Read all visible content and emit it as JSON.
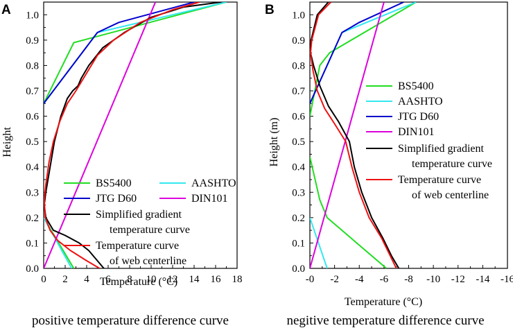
{
  "chart_data": [
    {
      "type": "line",
      "panel": "A",
      "caption": "positive temperature difference curve",
      "xlabel": "Temperature (°C)",
      "ylabel": "Height",
      "xlim": [
        0,
        18
      ],
      "ylim": [
        0,
        1.05
      ],
      "xticks": [
        0,
        2,
        4,
        6,
        8,
        10,
        12,
        14,
        16,
        18
      ],
      "xtick_labels": [
        "0",
        "2",
        "4",
        "6",
        "8",
        "10",
        "12",
        "14",
        "16",
        "18"
      ],
      "yticks": [
        0,
        0.1,
        0.2,
        0.3,
        0.4,
        0.5,
        0.6,
        0.7,
        0.8,
        0.9,
        1.0
      ],
      "ytick_labels": [
        "0.0",
        "0.1",
        "0.2",
        "0.3",
        "0.4",
        "0.5",
        "0.6",
        "0.7",
        "0.8",
        "0.9",
        "1.0"
      ],
      "legend": {
        "placement": "lower-right",
        "columns": 2,
        "order": [
          "BS5400",
          "AASHTO",
          "JTG D60",
          "DIN101",
          "Simplified gradient temperature curve",
          "Temperature curve of web centerline"
        ]
      },
      "series": [
        {
          "name": "BS5400",
          "color": "#22dd22",
          "segments": [
            [
              [
                0,
                0.65
              ],
              [
                2.8,
                0.89
              ],
              [
                17,
                1.05
              ]
            ],
            [
              [
                0,
                0.2
              ],
              [
                2.8,
                0
              ]
            ]
          ]
        },
        {
          "name": "AASHTO",
          "color": "#33e8f0",
          "segments": [
            [
              [
                0,
                0.65
              ],
              [
                5,
                0.93
              ],
              [
                17,
                1.05
              ]
            ],
            [
              [
                0,
                0.2
              ],
              [
                2.6,
                0
              ]
            ]
          ]
        },
        {
          "name": "JTG D60",
          "color": "#0000cc",
          "segments": [
            [
              [
                0,
                0.65
              ],
              [
                5,
                0.93
              ],
              [
                7,
                0.97
              ],
              [
                14,
                1.05
              ]
            ]
          ]
        },
        {
          "name": "DIN101",
          "color": "#dd00dd",
          "segments": [
            [
              [
                0,
                0
              ],
              [
                10.4,
                1.05
              ]
            ]
          ]
        },
        {
          "name": "Simplified gradient temperature curve",
          "color": "#000000",
          "segments": [
            [
              [
                16.5,
                1.05
              ],
              [
                13,
                1.03
              ],
              [
                10,
                0.99
              ],
              [
                7.5,
                0.93
              ],
              [
                5.5,
                0.87
              ],
              [
                4.2,
                0.8
              ],
              [
                3.5,
                0.75
              ],
              [
                3.2,
                0.72
              ],
              [
                2.7,
                0.7
              ],
              [
                2.2,
                0.67
              ],
              [
                1.6,
                0.6
              ],
              [
                1.0,
                0.5
              ],
              [
                0.6,
                0.4
              ],
              [
                0.2,
                0.3
              ],
              [
                0.05,
                0.25
              ],
              [
                0.2,
                0.2
              ],
              [
                0.9,
                0.15
              ],
              [
                2.0,
                0.13
              ],
              [
                3.3,
                0.1
              ],
              [
                4.2,
                0.07
              ],
              [
                5.0,
                0.03
              ],
              [
                5.6,
                0
              ]
            ]
          ]
        },
        {
          "name": "Temperature curve of web centerline",
          "color": "#ee1111",
          "segments": [
            [
              [
                14.5,
                1.05
              ],
              [
                12,
                1.02
              ],
              [
                9,
                0.97
              ],
              [
                6.5,
                0.9
              ],
              [
                5,
                0.84
              ],
              [
                4.0,
                0.77
              ],
              [
                3.0,
                0.7
              ],
              [
                2.2,
                0.65
              ],
              [
                1.5,
                0.58
              ],
              [
                0.9,
                0.5
              ],
              [
                0.5,
                0.42
              ],
              [
                0.2,
                0.33
              ],
              [
                0.05,
                0.27
              ],
              [
                0.15,
                0.2
              ],
              [
                0.6,
                0.15
              ],
              [
                1.3,
                0.11
              ],
              [
                2.5,
                0.07
              ],
              [
                4.0,
                0.03
              ],
              [
                5.2,
                0
              ]
            ]
          ]
        }
      ]
    },
    {
      "type": "line",
      "panel": "B",
      "caption": "negitive temperature difference curve",
      "xlabel": "Temperature (°C)",
      "ylabel": "Height (m)",
      "xlim": [
        0,
        -16
      ],
      "ylim": [
        0,
        1.05
      ],
      "xticks": [
        0,
        -2,
        -4,
        -6,
        -8,
        -10,
        -12,
        -14,
        -16
      ],
      "xtick_labels": [
        "-0",
        "-2",
        "-4",
        "-6",
        "-8",
        "-10",
        "-12",
        "-14",
        "-16"
      ],
      "yticks": [
        0,
        0.1,
        0.2,
        0.3,
        0.4,
        0.5,
        0.6,
        0.7,
        0.8,
        0.9,
        1.0
      ],
      "ytick_labels": [
        "0.0",
        "0.1",
        "0.2",
        "0.3",
        "0.4",
        "0.5",
        "0.6",
        "0.7",
        "0.8",
        "0.9",
        "1.0"
      ],
      "legend": {
        "placement": "center-right",
        "columns": 1,
        "order": [
          "BS5400",
          "AASHTO",
          "JTG D60",
          "DIN101",
          "Simplified gradient temperature curve",
          "Temperature curve of web centerline"
        ]
      },
      "series": [
        {
          "name": "BS5400",
          "color": "#22dd22",
          "segments": [
            [
              [
                0,
                0.6
              ],
              [
                -0.8,
                0.8
              ],
              [
                -1.6,
                0.85
              ],
              [
                -8.6,
                1.05
              ]
            ],
            [
              [
                0,
                0.44
              ],
              [
                -0.8,
                0.27
              ],
              [
                -1.4,
                0.2
              ],
              [
                -6.2,
                0
              ]
            ]
          ]
        },
        {
          "name": "AASHTO",
          "color": "#33e8f0",
          "segments": [
            [
              [
                0,
                0.65
              ],
              [
                -2.6,
                0.93
              ],
              [
                -8.6,
                1.05
              ]
            ],
            [
              [
                0,
                0.2
              ],
              [
                -1.4,
                0
              ]
            ]
          ]
        },
        {
          "name": "JTG D60",
          "color": "#0000cc",
          "segments": [
            [
              [
                0,
                0.65
              ],
              [
                -2.6,
                0.93
              ],
              [
                -4,
                0.97
              ],
              [
                -7.6,
                1.05
              ]
            ]
          ]
        },
        {
          "name": "DIN101",
          "color": "#dd00dd",
          "segments": [
            [
              [
                0,
                0
              ],
              [
                -6.0,
                1.05
              ]
            ]
          ]
        },
        {
          "name": "Simplified gradient temperature curve",
          "color": "#000000",
          "segments": [
            [
              [
                -1.5,
                1.05
              ],
              [
                -0.6,
                1.0
              ],
              [
                -0.1,
                0.9
              ],
              [
                -0.05,
                0.85
              ],
              [
                -0.3,
                0.8
              ],
              [
                -0.8,
                0.72
              ],
              [
                -1.5,
                0.64
              ],
              [
                -2.3,
                0.58
              ],
              [
                -3.2,
                0.5
              ],
              [
                -3.6,
                0.4
              ],
              [
                -4.2,
                0.3
              ],
              [
                -5.0,
                0.2
              ],
              [
                -5.9,
                0.12
              ],
              [
                -6.6,
                0.05
              ],
              [
                -7.2,
                0
              ]
            ]
          ]
        },
        {
          "name": "Temperature curve of web centerline",
          "color": "#ee1111",
          "segments": [
            [
              [
                -1.7,
                1.05
              ],
              [
                -0.7,
                1.0
              ],
              [
                -0.15,
                0.9
              ],
              [
                -0.05,
                0.85
              ],
              [
                -0.25,
                0.78
              ],
              [
                -0.6,
                0.7
              ],
              [
                -1.2,
                0.63
              ],
              [
                -2.0,
                0.57
              ],
              [
                -2.9,
                0.5
              ],
              [
                -3.4,
                0.4
              ],
              [
                -4.0,
                0.3
              ],
              [
                -4.8,
                0.2
              ],
              [
                -5.8,
                0.12
              ],
              [
                -6.5,
                0.05
              ],
              [
                -7.0,
                0
              ]
            ]
          ]
        }
      ]
    }
  ]
}
